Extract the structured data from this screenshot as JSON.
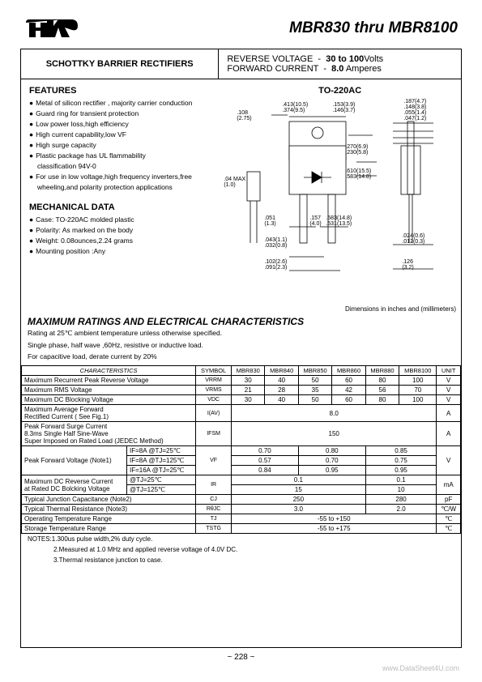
{
  "header": {
    "title": "MBR830 thru MBR8100",
    "subtitle": "SCHOTTKY BARRIER RECTIFIERS",
    "reverse_voltage_label": "REVERSE VOLTAGE",
    "reverse_voltage_value": "30 to 100",
    "reverse_voltage_unit": "Volts",
    "forward_current_label": "FORWARD CURRENT",
    "forward_current_value": "8.0",
    "forward_current_unit": "Amperes",
    "package": "TO-220AC"
  },
  "features": {
    "title": "FEATURES",
    "items": [
      "Metal of silicon rectifier , majority carrier conduction",
      "Guard ring for transient protection",
      "Low power loss,high efficiency",
      "High current capability,low VF",
      "High surge capacity",
      "Plastic package has UL flammability",
      "For use in low voltage,high frequency inverters,free"
    ],
    "items_cont": [
      "classification 94V-0",
      "wheeling,and polarity protection applications"
    ]
  },
  "mechanical": {
    "title": "MECHANICAL DATA",
    "items": [
      "Case: TO-220AC molded plastic",
      "Polarity:  As marked on the body",
      "Weight:  0.08ounces,2.24 grams",
      "Mounting position :Any"
    ]
  },
  "package_dims": {
    "note": "Dimensions in inches and (millimeters)",
    "w1": ".108",
    "w1m": "(2.75)",
    "w2": ".413(10.5)",
    "w2s": ".374(9.5)",
    "w3": ".153(3.9)",
    "w3s": ".146(3.7)",
    "t1": ".187(4.7)",
    "t2": ".148(3.8)",
    "t3": ".055(1.4)",
    "t4": ".047(1.2)",
    "h1": ".270(6.9)",
    "h1s": ".230(5.8)",
    "h2": ".610(15.5)",
    "h2s": ".583(14.8)",
    "max": ".04 MAX",
    "maxm": "(1.0)",
    "p1": ".051",
    "p1m": "(1.3)",
    "p2": ".043(1.1)",
    "p2s": ".032(0.8)",
    "p3": ".102(2.6)",
    "p3s": ".091(2.3)",
    "l1": ".157",
    "l1m": "(4.0)",
    "l2": ".583(14.8)",
    "l2s": ".531(13.5)",
    "r1": ".024(0.6)",
    "r1s": ".012(0.3)",
    "r2": ".126",
    "r2m": "(3.2)"
  },
  "max_ratings": {
    "title": "MAXIMUM RATINGS AND ELECTRICAL CHARACTERISTICS",
    "rating_note": "Rating at 25℃ ambient temperature unless otherwise specified.",
    "phase_note": "Single phase, half wave ,60Hz, resistive or inductive load.",
    "derate_note": "For capacitive load, derate current by 20%"
  },
  "table": {
    "char_header": "CHARACTERISTICS",
    "cols": [
      "SYMBOL",
      "MBR830",
      "MBR840",
      "MBR850",
      "MBR860",
      "MBR880",
      "MBR8100",
      "UNIT"
    ],
    "rows": [
      {
        "name": "Maximum Recurrent Peak Reverse Voltage",
        "sym": "VRRM",
        "vals": [
          "30",
          "40",
          "50",
          "60",
          "80",
          "100"
        ],
        "unit": "V"
      },
      {
        "name": "Maximum RMS Voltage",
        "sym": "VRMS",
        "vals": [
          "21",
          "28",
          "35",
          "42",
          "56",
          "70"
        ],
        "unit": "V"
      },
      {
        "name": "Maximum DC Blocking Voltage",
        "sym": "VDC",
        "vals": [
          "30",
          "40",
          "50",
          "60",
          "80",
          "100"
        ],
        "unit": "V"
      },
      {
        "name": "Maximum Average Forward\nRectified Current  ( See Fig.1)",
        "sym": "I(AV)",
        "span": "8.0",
        "unit": "A"
      },
      {
        "name": "Peak Forward Surge Current\n8.3ms Single Half Sine-Wave\nSuper Imposed on Rated Load (JEDEC Method)",
        "sym": "IFSM",
        "span": "150",
        "unit": "A"
      }
    ],
    "vf": {
      "name": "Peak Forward Voltage (Note1)",
      "conds": [
        "IF=8A @TJ=25℃",
        "IF=8A @TJ=125℃",
        "IF=16A @TJ=25℃"
      ],
      "sym": "VF",
      "g1": [
        "0.70",
        "0.57",
        "0.84"
      ],
      "g2": [
        "0.80",
        "0.70",
        "0.95"
      ],
      "g3": [
        "0.85",
        "0.75",
        "0.95"
      ],
      "unit": "V"
    },
    "ir": {
      "name": "Maximum DC Reverse Current\nat Rated DC Bolcking Voltage",
      "conds": [
        "@TJ=25℃",
        "@TJ=125℃"
      ],
      "sym": "IR",
      "g1": [
        "0.1",
        "15"
      ],
      "g2": [
        "0.1",
        "10"
      ],
      "unit": "mA"
    },
    "cj": {
      "name": "Typical Junction Capacitance (Note2)",
      "sym": "CJ",
      "g1": "250",
      "g2": "280",
      "unit": "pF"
    },
    "rth": {
      "name": "Typical Thermal Resistance (Note3)",
      "sym": "RθJC",
      "g1": "3.0",
      "g2": "2.0",
      "unit": "℃/W"
    },
    "tj": {
      "name": "Operating Temperature Range",
      "sym": "TJ",
      "span": "-55 to +150",
      "unit": "℃"
    },
    "tstg": {
      "name": "Storage Temperature Range",
      "sym": "TSTG",
      "span": "-55 to +175",
      "unit": "℃"
    }
  },
  "notes": {
    "n1": "NOTES:1.300us pulse width,2% duty cycle.",
    "n2": "2.Measured at 1.0 MHz and applied reverse voltage of 4.0V DC.",
    "n3": "3.Thermal resistance junction to case."
  },
  "pagenum": "~ 228 ~",
  "watermark": "www.DataSheet4U.com",
  "colors": {
    "text": "#000000",
    "border": "#000000",
    "watermark": "#bbbbbb"
  }
}
